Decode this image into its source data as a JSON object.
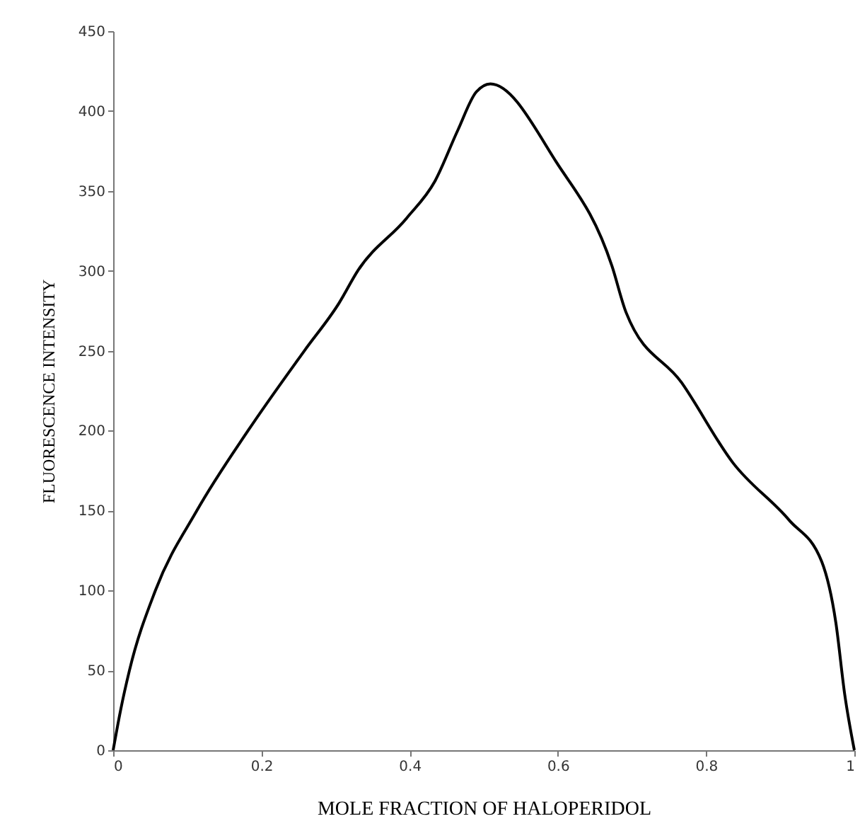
{
  "chart_data": {
    "type": "line",
    "xlabel": "MOLE FRACTION OF HALOPERIDOL",
    "ylabel": "FLUORESCENCE INTENSITY",
    "x": [
      0,
      0.01,
      0.022,
      0.057,
      0.113,
      0.182,
      0.258,
      0.305,
      0.33,
      0.396,
      0.434,
      0.465,
      0.49,
      0.509,
      0.598,
      0.673,
      0.692,
      0.767,
      0.836,
      0.912,
      0.956,
      0.975,
      0.987,
      1.0
    ],
    "series": [
      {
        "color": "#000000",
        "values": [
          0,
          25,
          50,
          100,
          150,
          200,
          250,
          280,
          300,
          333,
          356,
          388,
          412,
          417,
          368,
          303,
          274,
          230,
          180,
          144,
          118,
          80,
          35,
          0
        ]
      }
    ],
    "xlim": [
      0,
      1
    ],
    "xticks": [
      0,
      0.2,
      0.4,
      0.6,
      0.8,
      1
    ],
    "ylim": [
      0,
      450
    ],
    "yticks": [
      0,
      50,
      100,
      150,
      200,
      250,
      300,
      350,
      400,
      450
    ],
    "grid": false,
    "marker": "none",
    "line_style": "solid"
  }
}
